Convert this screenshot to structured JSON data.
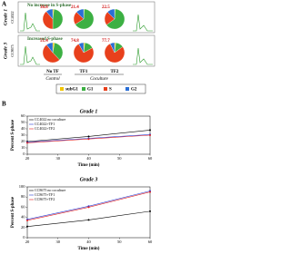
{
  "panel_a": {
    "label": "A",
    "rows": [
      {
        "grade": "Grade 1",
        "cell_line": "CC4022",
        "title": "No increase in S-phase"
      },
      {
        "grade": "Grade 3",
        "cell_line": "CC8675",
        "title": "Increased S-phase"
      }
    ],
    "columns": [
      "No TF",
      "TF1",
      "TF2"
    ],
    "groups": [
      "Control",
      "Coculture"
    ],
    "legend": {
      "labels": [
        "subG1",
        "G1",
        "S",
        "G2"
      ],
      "colors": [
        "#f2c500",
        "#3cb043",
        "#e8401c",
        "#2a6fd6"
      ]
    }
  },
  "panel_b": {
    "label": "B"
  },
  "chart_data": [
    {
      "type": "pie",
      "values": [
        2,
        48,
        38.8,
        11.2
      ]
    },
    {
      "type": "pie",
      "values": [
        1,
        65,
        21.4,
        12.6
      ]
    },
    {
      "type": "pie",
      "values": [
        1,
        64,
        22.5,
        12.5
      ]
    },
    {
      "type": "pie",
      "values": [
        3,
        35,
        51.4,
        10.6
      ]
    },
    {
      "type": "pie",
      "values": [
        2,
        15,
        74.8,
        8.2
      ]
    },
    {
      "type": "pie",
      "values": [
        2,
        13,
        77.7,
        7.3
      ]
    },
    {
      "type": "line",
      "title": "Grade 1",
      "x_label": "Time (min)",
      "y_label": "Percent S-phase",
      "x": [
        20,
        40,
        60
      ],
      "xlim": [
        20,
        60
      ],
      "xticks": [
        20,
        30,
        40,
        50,
        60
      ],
      "ylim": [
        0,
        60
      ],
      "yticks": [
        0,
        10,
        20,
        30,
        40,
        50,
        60
      ],
      "series": [
        {
          "name": "CC4022 no coculture",
          "color": "#000000",
          "values": [
            20,
            28,
            38
          ]
        },
        {
          "name": "CC4022+TF1",
          "color": "#2a3fd6",
          "values": [
            19,
            25,
            31
          ]
        },
        {
          "name": "CC4022+TF2",
          "color": "#e02020",
          "values": [
            18,
            24,
            30
          ]
        }
      ]
    },
    {
      "type": "line",
      "title": "Grade 3",
      "x_label": "Time (min)",
      "y_label": "Percent S-phase",
      "x": [
        20,
        40,
        60
      ],
      "xlim": [
        20,
        60
      ],
      "xticks": [
        20,
        30,
        40,
        50,
        60
      ],
      "ylim": [
        0,
        100
      ],
      "yticks": [
        0,
        20,
        40,
        60,
        80,
        100
      ],
      "series": [
        {
          "name": "CC8675 no coculture",
          "color": "#000000",
          "values": [
            22,
            35,
            52
          ]
        },
        {
          "name": "CC8675+TF1",
          "color": "#2a3fd6",
          "values": [
            36,
            62,
            92
          ]
        },
        {
          "name": "CC8675+TF2",
          "color": "#e02020",
          "values": [
            34,
            60,
            90
          ]
        }
      ]
    }
  ]
}
